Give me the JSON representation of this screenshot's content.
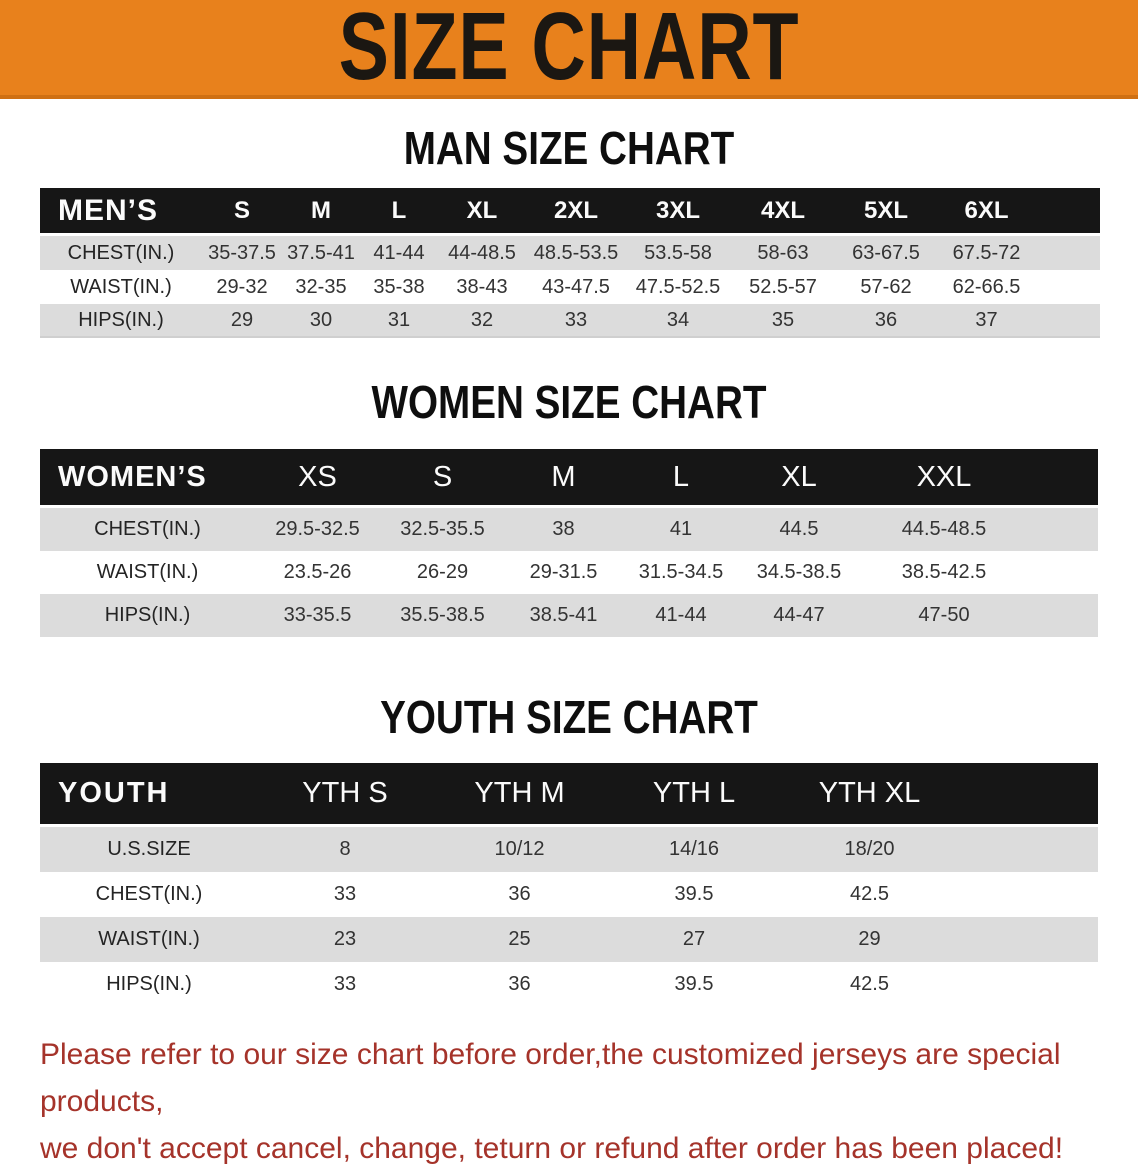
{
  "banner": {
    "title": "SIZE CHART"
  },
  "sections": [
    {
      "heading": "MAN SIZE CHART",
      "table": {
        "label": "MEN’S",
        "columns": [
          "S",
          "M",
          "L",
          "XL",
          "2XL",
          "3XL",
          "4XL",
          "5XL",
          "6XL"
        ],
        "rows": [
          {
            "label": "CHEST(IN.)",
            "values": [
              "35-37.5",
              "37.5-41",
              "41-44",
              "44-48.5",
              "48.5-53.5",
              "53.5-58",
              "58-63",
              "63-67.5",
              "67.5-72"
            ]
          },
          {
            "label": "WAIST(IN.)",
            "values": [
              "29-32",
              "32-35",
              "35-38",
              "38-43",
              "43-47.5",
              "47.5-52.5",
              "52.5-57",
              "57-62",
              "62-66.5"
            ]
          },
          {
            "label": "HIPS(IN.)",
            "values": [
              "29",
              "30",
              "31",
              "32",
              "33",
              "34",
              "35",
              "36",
              "37"
            ]
          }
        ]
      }
    },
    {
      "heading": "WOMEN SIZE CHART",
      "table": {
        "label": "WOMEN’S",
        "columns": [
          "XS",
          "S",
          "M",
          "L",
          "XL",
          "XXL"
        ],
        "rows": [
          {
            "label": "CHEST(IN.)",
            "values": [
              "29.5-32.5",
              "32.5-35.5",
              "38",
              "41",
              "44.5",
              "44.5-48.5"
            ]
          },
          {
            "label": "WAIST(IN.)",
            "values": [
              "23.5-26",
              "26-29",
              "29-31.5",
              "31.5-34.5",
              "34.5-38.5",
              "38.5-42.5"
            ]
          },
          {
            "label": "HIPS(IN.)",
            "values": [
              "33-35.5",
              "35.5-38.5",
              "38.5-41",
              "41-44",
              "44-47",
              "47-50"
            ]
          }
        ]
      }
    },
    {
      "heading": "YOUTH SIZE CHART",
      "table": {
        "label": "YOUTH",
        "columns": [
          "YTH S",
          "YTH M",
          "YTH L",
          "YTH XL"
        ],
        "rows": [
          {
            "label": "U.S.SIZE",
            "values": [
              "8",
              "10/12",
              "14/16",
              "18/20"
            ]
          },
          {
            "label": "CHEST(IN.)",
            "values": [
              "33",
              "36",
              "39.5",
              "42.5"
            ]
          },
          {
            "label": "WAIST(IN.)",
            "values": [
              "23",
              "25",
              "27",
              "29"
            ]
          },
          {
            "label": "HIPS(IN.)",
            "values": [
              "33",
              "36",
              "39.5",
              "42.5"
            ]
          }
        ]
      }
    }
  ],
  "footer": {
    "line1": "Please refer to our size chart before order,the customized jerseys are special products,",
    "line2": "we don't accept cancel, change, teturn or refund after order has been placed!"
  },
  "colors": {
    "orange": "#E8811C",
    "orange_edge": "#CF7013",
    "header_black": "#161616",
    "row_gray": "#DCDCDC",
    "text_dark": "#2E2E2E",
    "notice_red": "#A5332A"
  }
}
